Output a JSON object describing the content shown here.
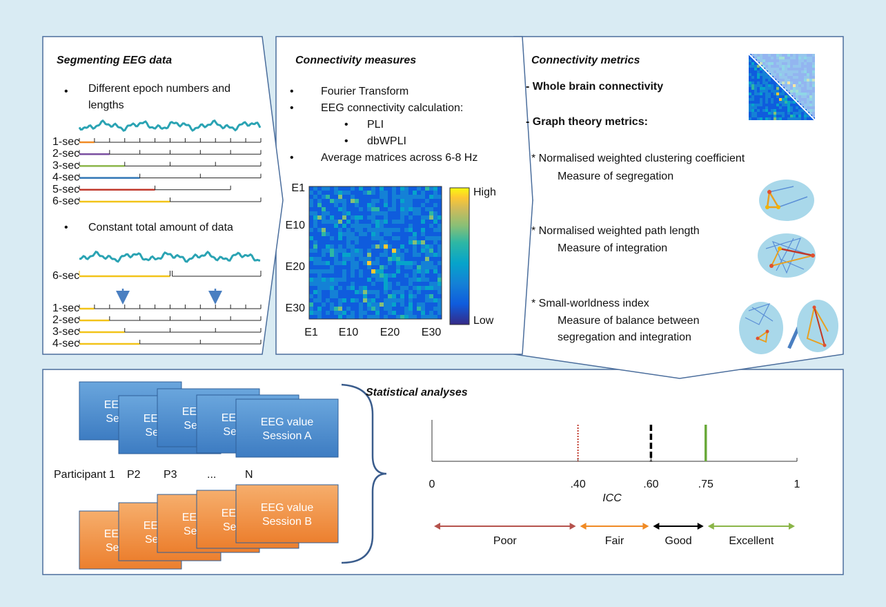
{
  "segmenting": {
    "title": "Segmenting EEG data",
    "bullets": [
      "Different epoch numbers and lengths",
      "Constant total amount of data"
    ],
    "epoch_rows": [
      "1-sec",
      "2-sec",
      "3-sec",
      "4-sec",
      "5-sec",
      "6-sec"
    ],
    "epoch_colors": [
      "#f08a24",
      "#7b4fa0",
      "#8bb548",
      "#2f75b5",
      "#c0392b",
      "#f2c318"
    ],
    "continuous_row": "6-sec",
    "resampled_rows": [
      "1-sec",
      "2-sec",
      "3-sec",
      "4-sec"
    ]
  },
  "connectivity_measures": {
    "title": "Connectivity measures",
    "bullets": [
      "Fourier Transform",
      "EEG connectivity calculation:",
      "Average matrices across 6-8 Hz"
    ],
    "sub_bullets": [
      "PLI",
      "dbWPLI"
    ],
    "matrix": {
      "y_labels": [
        "E1",
        "E10",
        "E20",
        "E30"
      ],
      "x_labels": [
        "E1",
        "E10",
        "E20",
        "E30"
      ],
      "colorbar": [
        "High",
        "Low"
      ]
    }
  },
  "connectivity_metrics": {
    "title": "Connectivity metrics",
    "headings": [
      "- Whole brain connectivity",
      "- Graph theory metrics:"
    ],
    "metrics": [
      {
        "name": "* Normalised weighted clustering coefficient",
        "description": "Measure of segregation"
      },
      {
        "name": "* Normalised weighted path length",
        "description": "Measure of integration"
      },
      {
        "name": "* Small-worldness index",
        "description": "Measure of balance between segregation and integration"
      }
    ]
  },
  "statistical": {
    "title": "Statistical analyses",
    "session_a_card": [
      "EEG value",
      "Session A"
    ],
    "session_b_card": [
      "EEG value",
      "Session B"
    ],
    "participants": [
      "Participant 1",
      "P2",
      "P3",
      "...",
      "N"
    ],
    "icc_scale": {
      "label": "ICC",
      "xlim": [
        0,
        1
      ],
      "xticks": [
        0,
        {
          "value": 0.4,
          "label": ".40"
        },
        {
          "value": 0.6,
          "label": ".60"
        },
        {
          "value": 0.75,
          "label": ".75"
        },
        1
      ],
      "markers": [
        {
          "value": 0.4,
          "color": "#c0392b",
          "style": "dotted"
        },
        {
          "value": 0.6,
          "color": "#000000",
          "style": "dashed"
        },
        {
          "value": 0.75,
          "color": "#6aaa3a",
          "style": "solid"
        }
      ],
      "ranges": [
        {
          "name": "Poor",
          "color": "#b5524c"
        },
        {
          "name": "Fair",
          "color": "#f08a24"
        },
        {
          "name": "Good",
          "color": "#000000"
        },
        {
          "name": "Excellent",
          "color": "#8bb548"
        }
      ]
    }
  }
}
